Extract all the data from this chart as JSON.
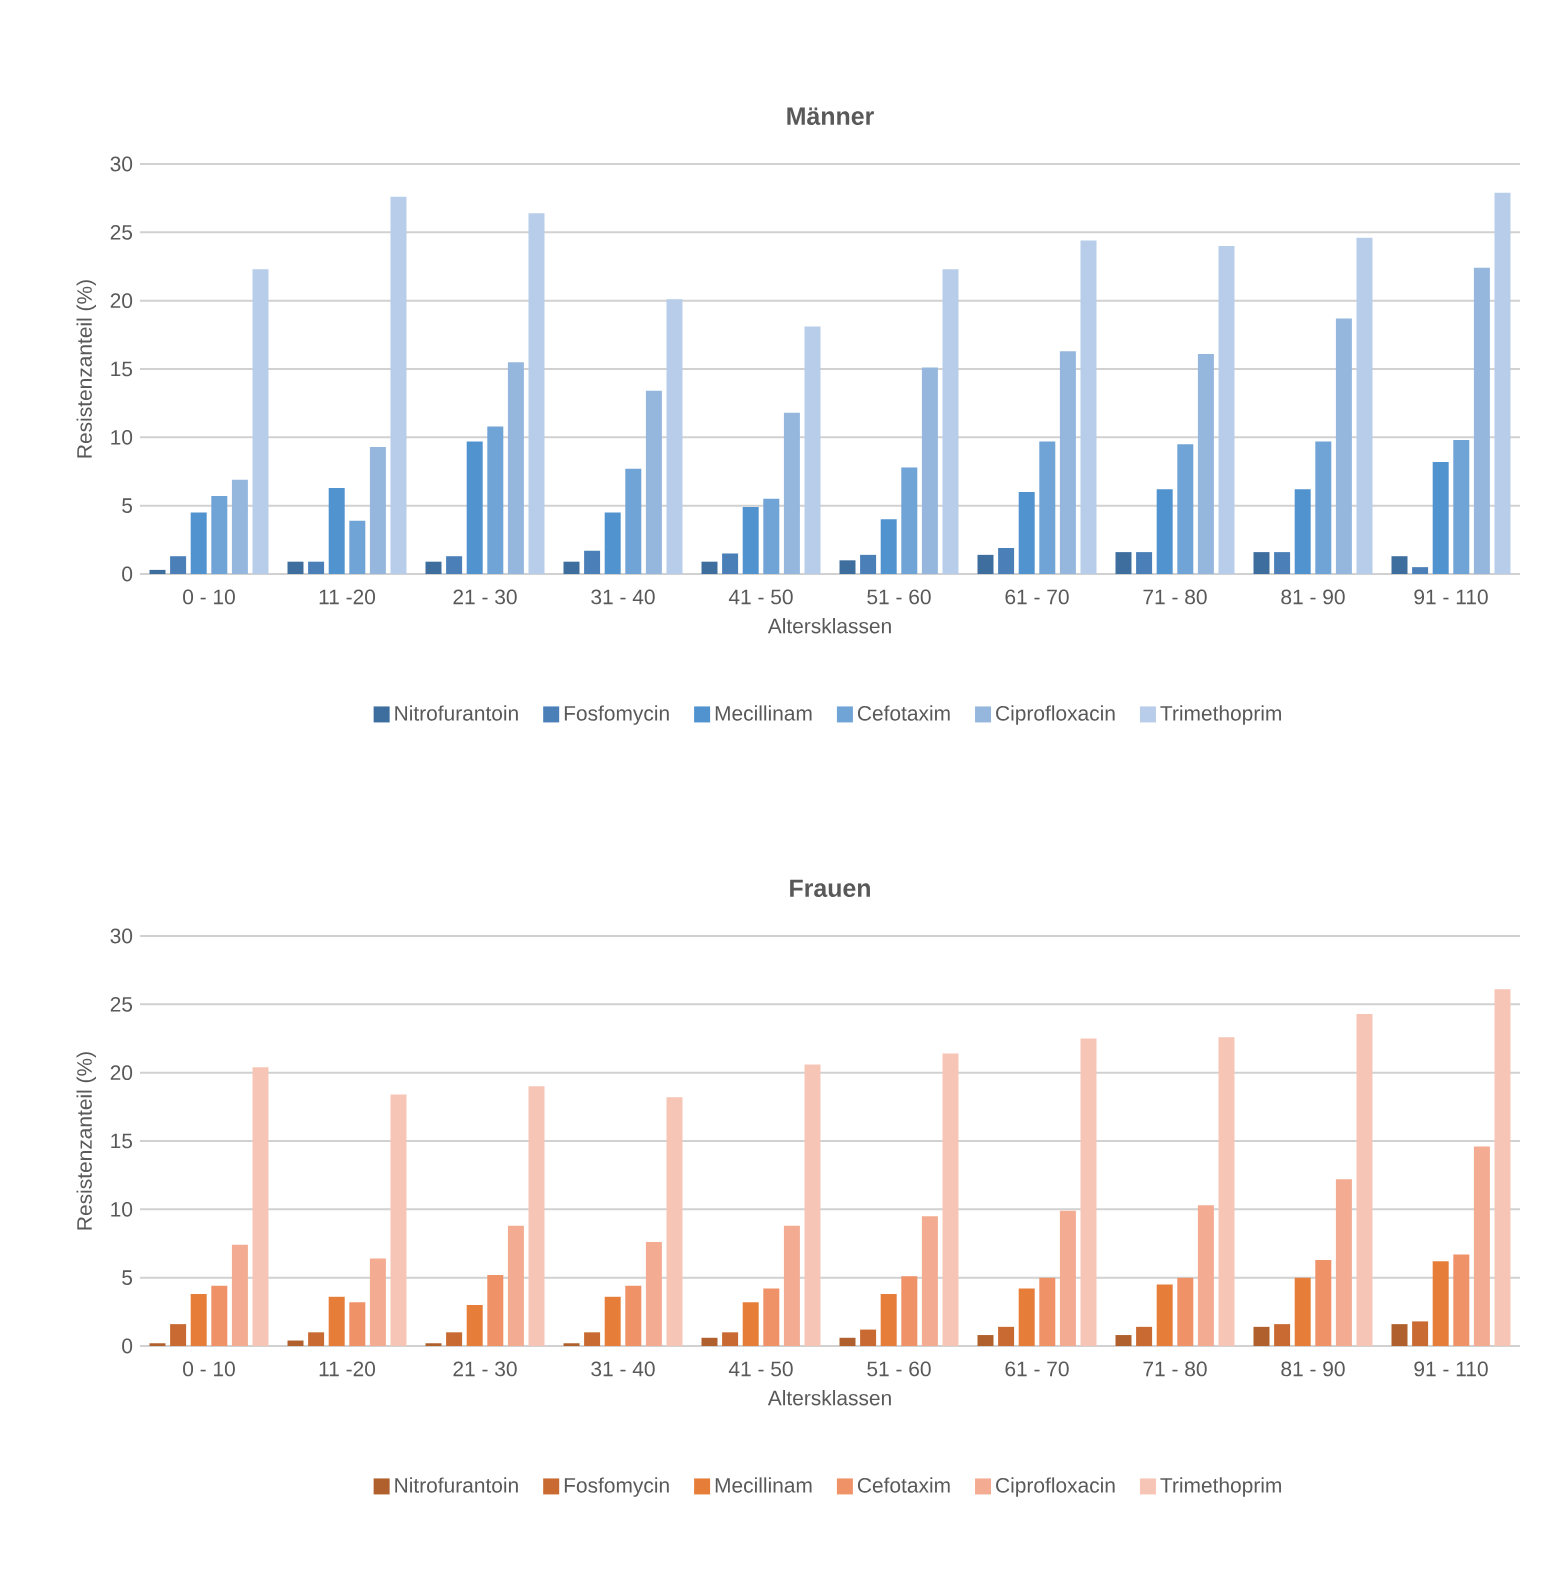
{
  "chart_data": [
    {
      "type": "bar",
      "title": "Männer",
      "xlabel": "Altersklassen",
      "ylabel": "Resistenzanteil (%)",
      "categories": [
        "0 - 10",
        "11 -20",
        "21 - 30",
        "31 - 40",
        "41 - 50",
        "51 - 60",
        "61 - 70",
        "71 - 80",
        "81 - 90",
        "91 - 110"
      ],
      "series": [
        {
          "name": "Nitrofurantoin",
          "color": "#3e6e9e",
          "values": [
            0.3,
            0.9,
            0.9,
            0.9,
            0.9,
            1.0,
            1.4,
            1.6,
            1.6,
            1.3
          ]
        },
        {
          "name": "Fosfomycin",
          "color": "#4a7fb8",
          "values": [
            1.3,
            0.9,
            1.3,
            1.7,
            1.5,
            1.4,
            1.9,
            1.6,
            1.6,
            0.5
          ]
        },
        {
          "name": "Mecillinam",
          "color": "#5093cf",
          "values": [
            4.5,
            6.3,
            9.7,
            4.5,
            4.9,
            4.0,
            6.0,
            6.2,
            6.2,
            8.2
          ]
        },
        {
          "name": "Cefotaxim",
          "color": "#70a3d6",
          "values": [
            5.7,
            3.9,
            10.8,
            7.7,
            5.5,
            7.8,
            9.7,
            9.5,
            9.7,
            9.8
          ]
        },
        {
          "name": "Ciprofloxacin",
          "color": "#95b7de",
          "values": [
            6.9,
            9.3,
            15.5,
            13.4,
            11.8,
            15.1,
            16.3,
            16.1,
            18.7,
            22.4
          ]
        },
        {
          "name": "Trimethoprim",
          "color": "#b7cde9",
          "values": [
            22.3,
            27.6,
            26.4,
            20.1,
            18.1,
            22.3,
            24.4,
            24.0,
            24.6,
            27.9
          ]
        }
      ],
      "ylim": [
        0,
        30
      ],
      "yticks": [
        0,
        5,
        10,
        15,
        20,
        25,
        30
      ],
      "grid": "y",
      "legend": "bottom"
    },
    {
      "type": "bar",
      "title": "Frauen",
      "xlabel": "Altersklassen",
      "ylabel": "Resistenzanteil (%)",
      "categories": [
        "0 - 10",
        "11 -20",
        "21 - 30",
        "31 - 40",
        "41 - 50",
        "51 - 60",
        "61 - 70",
        "71 - 80",
        "81 - 90",
        "91 - 110"
      ],
      "series": [
        {
          "name": "Nitrofurantoin",
          "color": "#b0602c",
          "values": [
            0.2,
            0.4,
            0.2,
            0.2,
            0.6,
            0.6,
            0.8,
            0.8,
            1.4,
            1.6
          ]
        },
        {
          "name": "Fosfomycin",
          "color": "#c96a32",
          "values": [
            1.6,
            1.0,
            1.0,
            1.0,
            1.0,
            1.2,
            1.4,
            1.4,
            1.6,
            1.8
          ]
        },
        {
          "name": "Mecillinam",
          "color": "#e67e3a",
          "values": [
            3.8,
            3.6,
            3.0,
            3.6,
            3.2,
            3.8,
            4.2,
            4.5,
            5.0,
            6.2
          ]
        },
        {
          "name": "Cefotaxim",
          "color": "#f09268",
          "values": [
            4.4,
            3.2,
            5.2,
            4.4,
            4.2,
            5.1,
            5.0,
            5.0,
            6.3,
            6.7
          ]
        },
        {
          "name": "Ciprofloxacin",
          "color": "#f3ab91",
          "values": [
            7.4,
            6.4,
            8.8,
            7.6,
            8.8,
            9.5,
            9.9,
            10.3,
            12.2,
            14.6
          ]
        },
        {
          "name": "Trimethoprim",
          "color": "#f7c5b6",
          "values": [
            20.4,
            18.4,
            19.0,
            18.2,
            20.6,
            21.4,
            22.5,
            22.6,
            24.3,
            26.1
          ]
        }
      ],
      "ylim": [
        0,
        30
      ],
      "yticks": [
        0,
        5,
        10,
        15,
        20,
        25,
        30
      ],
      "grid": "y",
      "legend": "bottom"
    }
  ]
}
